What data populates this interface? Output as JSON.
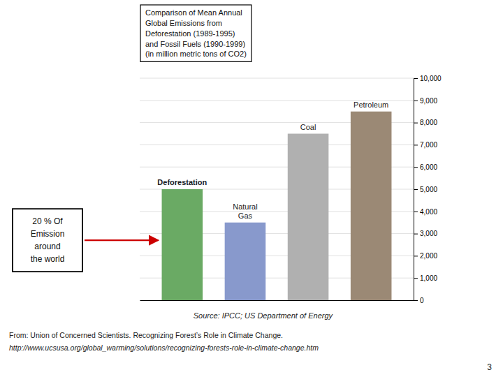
{
  "chart_data": {
    "type": "bar",
    "title": "Comparison of Mean Annual\nGlobal Emissions from\nDeforestation (1989-1995)\nand Fossil Fuels (1990-1999)\n(in million metric tons of CO2)",
    "categories": [
      "Deforestation",
      "Natural\nGas",
      "Coal",
      "Petroleum"
    ],
    "values": [
      5000,
      3500,
      7500,
      8500
    ],
    "colors": [
      "#6aaa64",
      "#8899cc",
      "#b0b0b0",
      "#9b8975"
    ],
    "ylim": [
      0,
      10000
    ],
    "yticks": [
      0,
      {
        "value": 1000,
        "label": "1,000"
      },
      {
        "value": 2000,
        "label": "2,000"
      },
      {
        "value": 3000,
        "label": "3,000"
      },
      {
        "value": 4000,
        "label": "4,000"
      },
      {
        "value": 5000,
        "label": "5,000"
      },
      {
        "value": 6000,
        "label": "6,000"
      },
      {
        "value": 7000,
        "label": "7,000"
      },
      {
        "value": 8000,
        "label": "8,000"
      },
      {
        "value": 9000,
        "label": "9,000"
      },
      {
        "value": 10000,
        "label": "10,000"
      }
    ],
    "grid": true,
    "tick_labels": "y",
    "annotations": [
      "20 %  Of\nEmission\naround\nthe world",
      "Source:  IPCC; US Department of Energy",
      "From:  Union of Concerned Scientists.  Recognizing Forest’s Role in Climate Change.",
      "http://www.ucsusa.org/global_warming/solutions/recognizing-forests-role-in-climate-change.htm",
      "3"
    ]
  }
}
